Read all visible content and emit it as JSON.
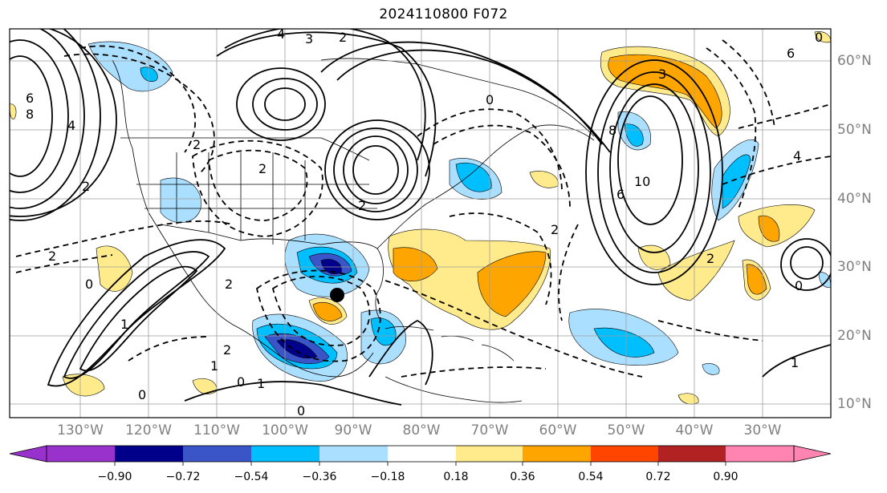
{
  "title": "2024110800 F072",
  "lat_labels": [
    "60°N",
    "50°N",
    "40°N",
    "30°N",
    "20°N",
    "10°N"
  ],
  "lon_labels": [
    "130°W",
    "120°W",
    "110°W",
    "100°W",
    "90°W",
    "80°W",
    "70°W",
    "60°W",
    "50°W",
    "40°W",
    "30°W"
  ],
  "contour_labels": [
    "4",
    "3",
    "2",
    "6",
    "8",
    "4",
    "2",
    "0",
    "2",
    "2",
    "2",
    "0",
    "6",
    "8",
    "10",
    "6",
    "4",
    "3",
    "2",
    "2",
    "0",
    "2",
    "1",
    "0",
    "1",
    "0",
    "2",
    "1",
    "0",
    "2",
    "1",
    "0"
  ],
  "colorbar": {
    "ticks": [
      "−0.90",
      "−0.72",
      "−0.54",
      "−0.36",
      "−0.18",
      "0.18",
      "0.36",
      "0.54",
      "0.72",
      "0.90"
    ],
    "colors": [
      "#9932cc",
      "#00008b",
      "#3a55c8",
      "#00bfff",
      "#aadfff",
      "#ffffff",
      "#ffeb8c",
      "#ffa500",
      "#ff4500",
      "#b22222",
      "#ff85b0"
    ]
  },
  "marker": "storm-center-dot"
}
